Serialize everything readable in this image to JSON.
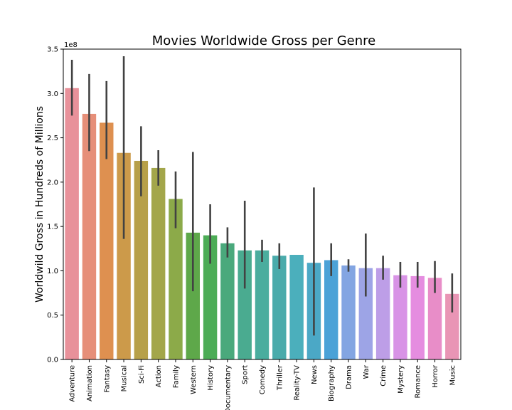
{
  "chart_data": {
    "type": "bar",
    "title": "Movies Worldwide Gross per Genre",
    "xlabel": "",
    "ylabel": "Worldwild Gross in Hundreds of Millions",
    "y_offset_label": "1e8",
    "ylim": [
      0,
      3.5
    ],
    "yticks": [
      "0.0",
      "0.5",
      "1.0",
      "1.5",
      "2.0",
      "2.5",
      "3.0",
      "3.5"
    ],
    "grid": false,
    "categories": [
      "Adventure",
      "Animation",
      "Fantasy",
      "Musical",
      "Sci-Fi",
      "Action",
      "Family",
      "Western",
      "History",
      "Documentary",
      "Sport",
      "Comedy",
      "Thriller",
      "Reality-TV",
      "News",
      "Biography",
      "Drama",
      "War",
      "Crime",
      "Mystery",
      "Romance",
      "Horror",
      "Music"
    ],
    "values": [
      3.06,
      2.77,
      2.67,
      2.33,
      2.24,
      2.16,
      1.81,
      1.43,
      1.4,
      1.31,
      1.23,
      1.23,
      1.17,
      1.18,
      1.09,
      1.12,
      1.06,
      1.03,
      1.03,
      0.95,
      0.94,
      0.92,
      0.74
    ],
    "ci_low": [
      2.75,
      2.35,
      2.26,
      1.36,
      1.84,
      1.96,
      1.48,
      0.77,
      1.08,
      1.15,
      0.8,
      1.1,
      1.02,
      null,
      0.27,
      0.94,
      0.99,
      0.71,
      0.9,
      0.81,
      0.81,
      0.75,
      0.53
    ],
    "ci_high": [
      3.38,
      3.22,
      3.14,
      3.42,
      2.63,
      2.36,
      2.12,
      2.34,
      1.75,
      1.49,
      1.79,
      1.35,
      1.31,
      null,
      1.94,
      1.31,
      1.13,
      1.42,
      1.17,
      1.1,
      1.1,
      1.11,
      0.97
    ],
    "colors": [
      "#e8919a",
      "#e68f79",
      "#de9050",
      "#cc9a4a",
      "#b7a049",
      "#a3a64a",
      "#8caa49",
      "#5ea84a",
      "#4cac56",
      "#4aa97c",
      "#4aab90",
      "#4aad9e",
      "#4aabab",
      "#4bafbc",
      "#4ba8c6",
      "#4ba2d7",
      "#83a5e2",
      "#9da4e6",
      "#bd9ee7",
      "#d893e6",
      "#e58de0",
      "#e88dc8",
      "#e995b5"
    ],
    "errorbar_color": "#424242"
  }
}
